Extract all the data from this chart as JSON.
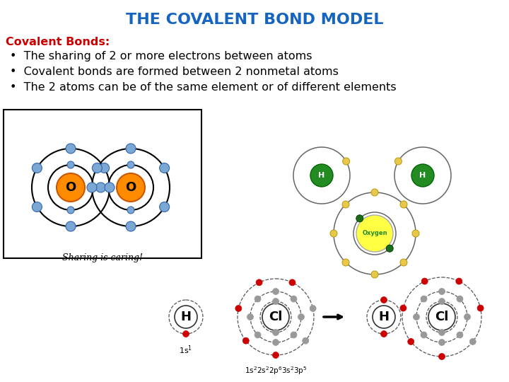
{
  "title": "THE COVALENT BOND MODEL",
  "title_color": "#1565C0",
  "background_color": "#FFFFFF",
  "subtitle": "Covalent Bonds:",
  "subtitle_color": "#CC0000",
  "bullets": [
    "The sharing of 2 or more electrons between atoms",
    "Covalent bonds are formed between 2 nonmetal atoms",
    "The 2 atoms can be of the same element or of different elements"
  ],
  "bullet_color": "#000000",
  "text_fontsize": 11.5,
  "title_fontsize": 16
}
